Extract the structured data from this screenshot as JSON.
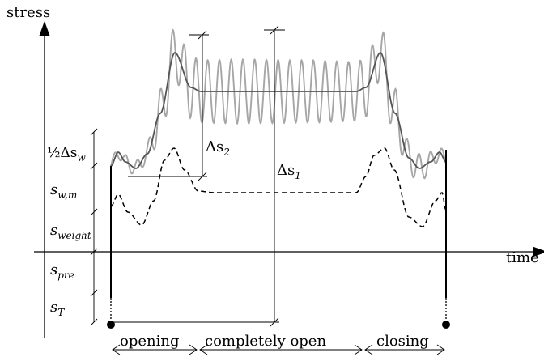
{
  "axes": {
    "y_label": "stress",
    "x_label": "time"
  },
  "labels": {
    "half_delta_sw": "½Δs",
    "half_delta_sw_sub": "w",
    "delta_s2": "Δs",
    "delta_s2_sub": "2",
    "delta_s1": "Δs",
    "delta_s1_sub": "1",
    "s_wm": "s",
    "s_wm_sub": "w,m",
    "s_weight": "s",
    "s_weight_sub": "weight",
    "s_pre": "s",
    "s_pre_sub": "pre",
    "s_t": "s",
    "s_t_sub": "T"
  },
  "phases": [
    {
      "label": "opening"
    },
    {
      "label": "completely open"
    },
    {
      "label": "closing"
    }
  ],
  "colors": {
    "oscillation": "#a6a6a6",
    "mean_curve": "#555555",
    "weight_curve": "#000000"
  }
}
